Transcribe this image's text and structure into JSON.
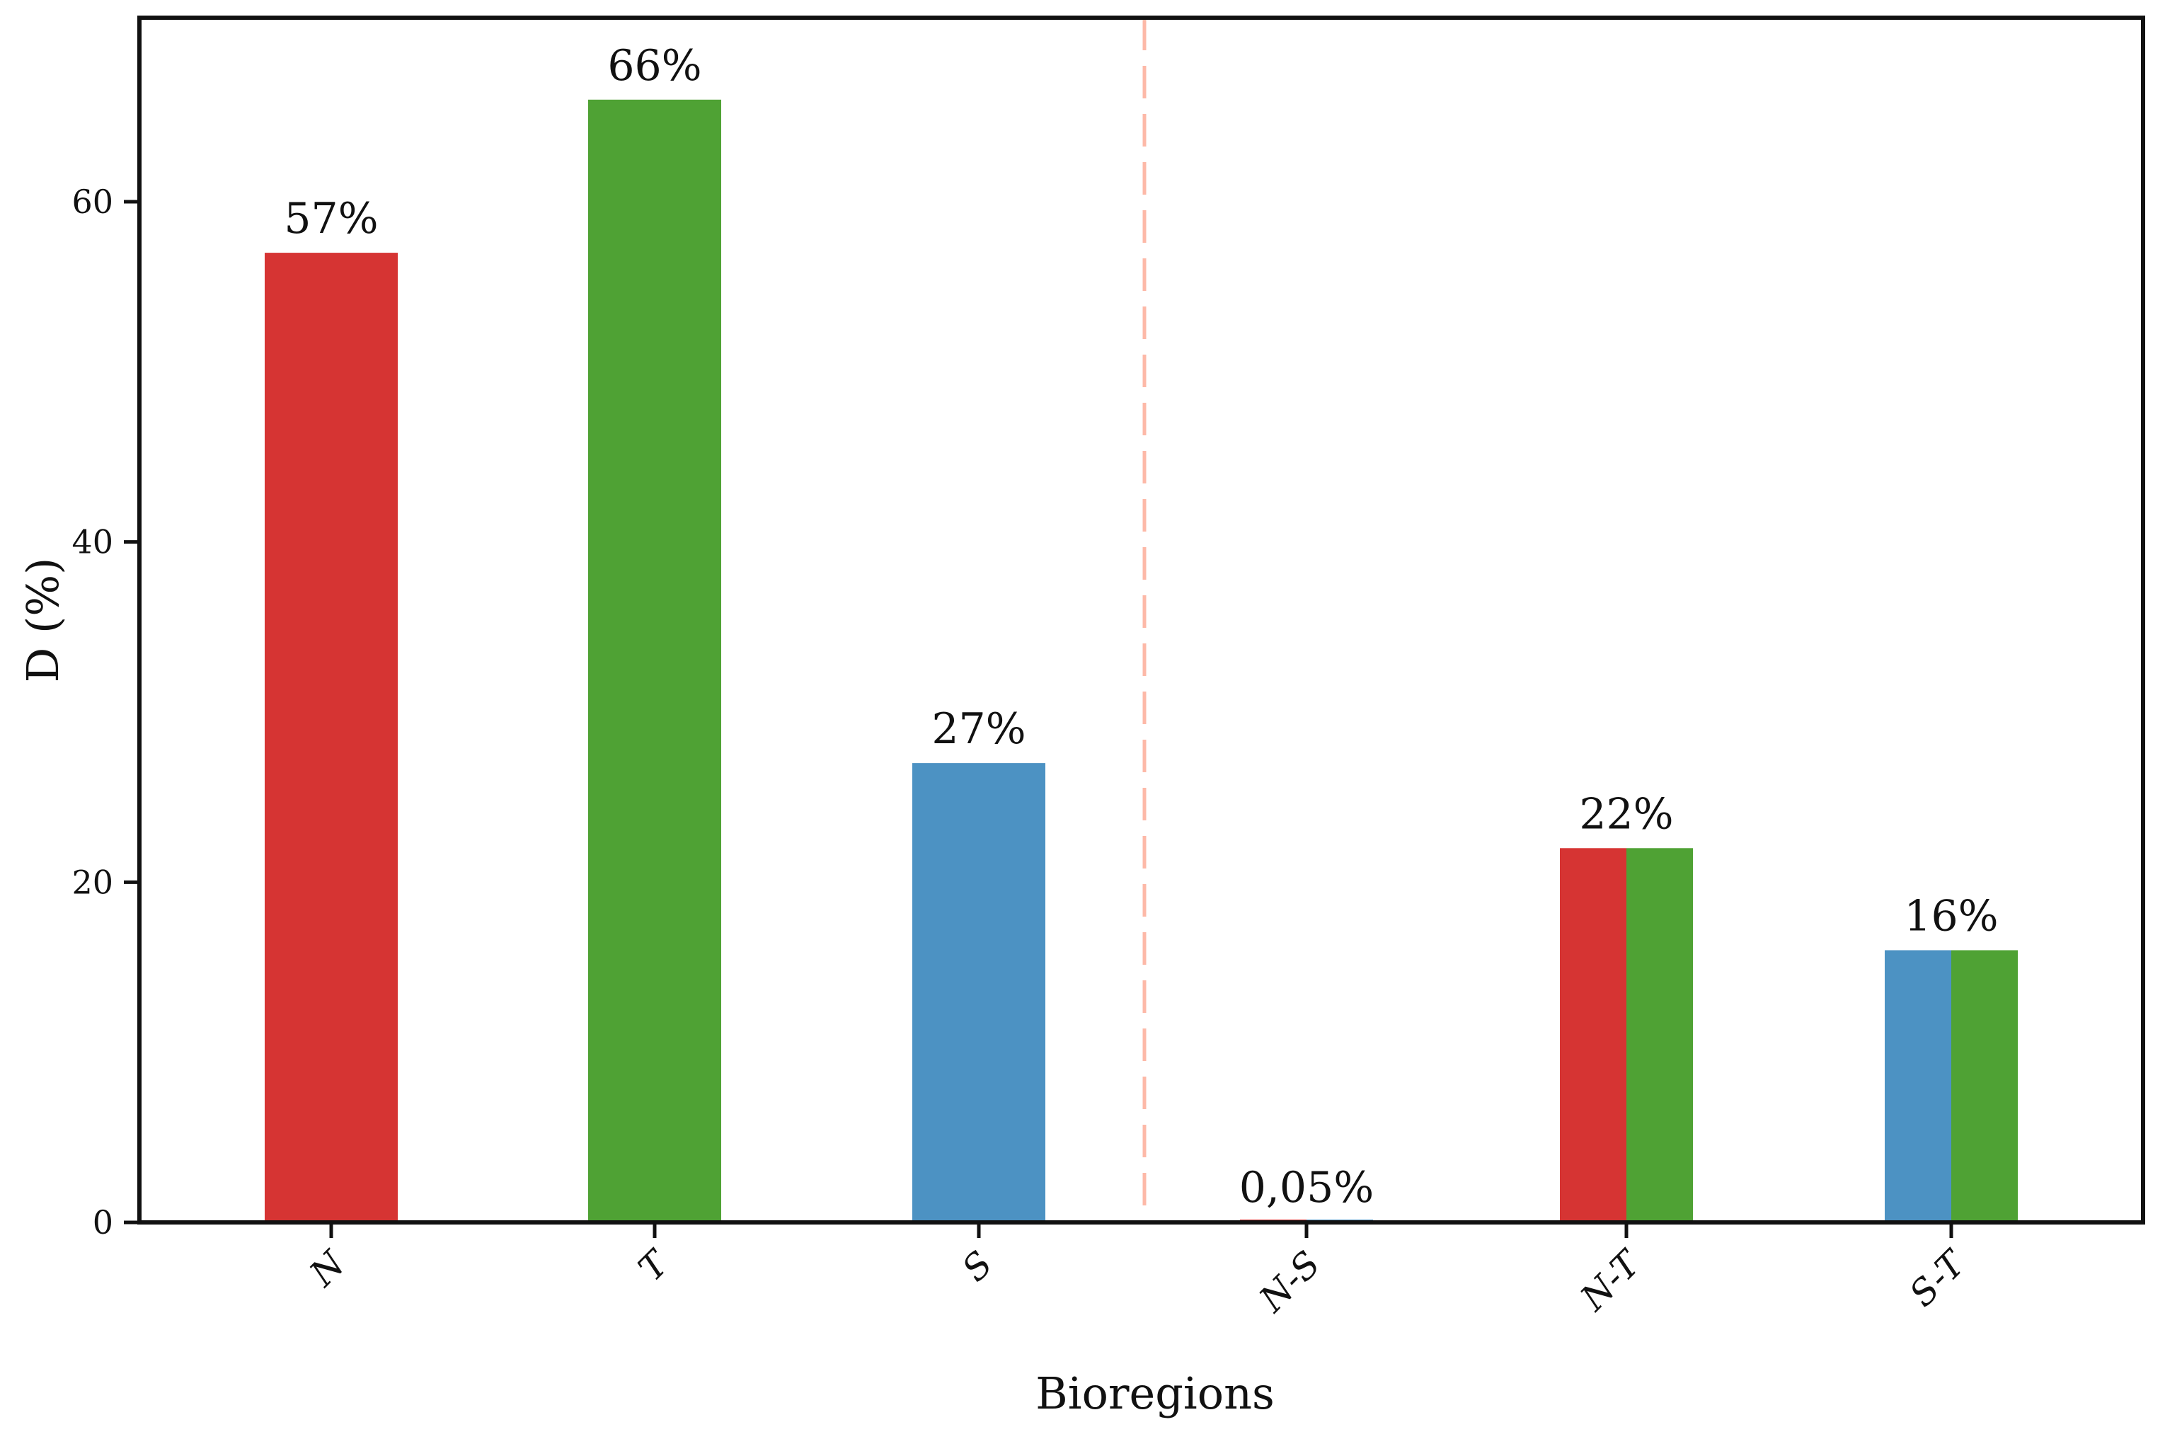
{
  "chart_data": {
    "type": "bar",
    "title": "",
    "xlabel": "Bioregions",
    "ylabel": "D (%)",
    "ylim": [
      0,
      70.5
    ],
    "yticks": [
      0,
      20,
      40,
      60
    ],
    "grid": false,
    "legend": null,
    "categories": [
      "N",
      "T",
      "S",
      "N-S",
      "N-T",
      "S-T"
    ],
    "values": [
      57,
      66,
      27,
      0.05,
      22,
      16
    ],
    "value_labels": [
      "57%",
      "66%",
      "27%",
      "0,05%",
      "22%",
      "16%"
    ],
    "bar_fill_segments": [
      [
        "N"
      ],
      [
        "T"
      ],
      [
        "S"
      ],
      [
        "N",
        "S"
      ],
      [
        "N",
        "T"
      ],
      [
        "S",
        "T"
      ]
    ],
    "annotations": [
      {
        "type": "vertical-dashed-line",
        "position": "between S and N-S",
        "color": "#FDB9A8"
      }
    ]
  },
  "colors": {
    "N": "#D63433",
    "T": "#4FA234",
    "S": "#4C92C3",
    "divider": "#FDB9A8",
    "axis": "#111111"
  }
}
